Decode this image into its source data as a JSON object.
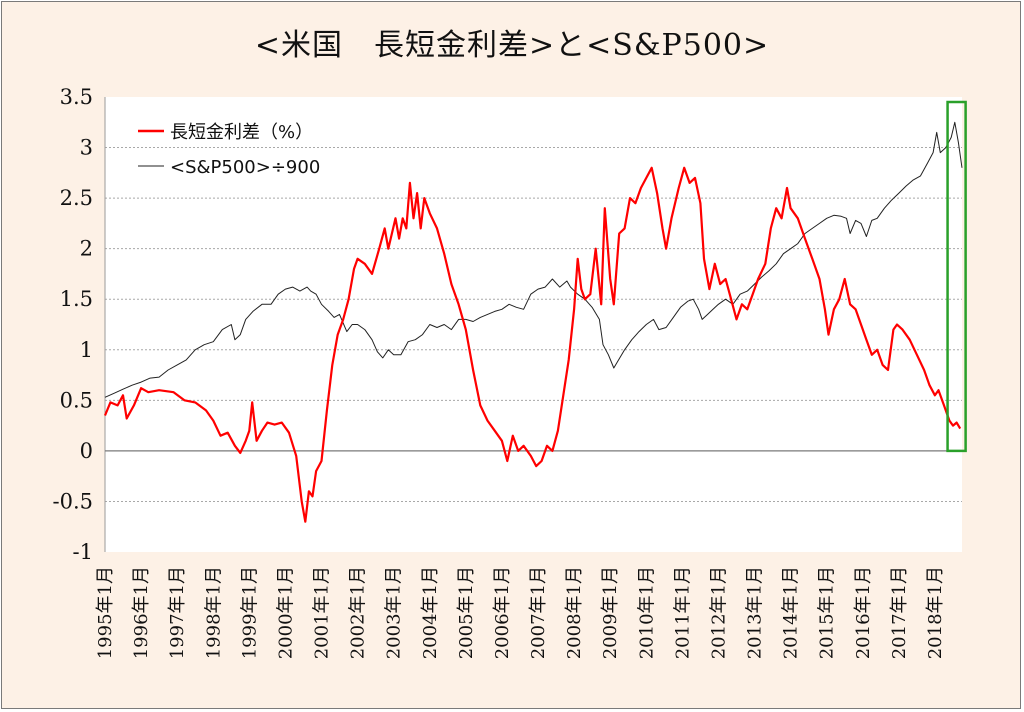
{
  "chart_data": {
    "type": "line",
    "title": "<米国　長短金利差>と<S&P500>",
    "xlabel": "",
    "ylabel": "",
    "ylim": [
      -1,
      3.5
    ],
    "yticks": [
      -1,
      -0.5,
      0,
      0.5,
      1,
      1.5,
      2,
      2.5,
      3,
      3.5
    ],
    "ytick_labels": [
      "-1",
      "-0.5",
      "0",
      "0.5",
      "1",
      "1.5",
      "2",
      "2.5",
      "3",
      "3.5"
    ],
    "xlim": [
      1995.0,
      2018.75
    ],
    "xtick_labels": [
      "1995年1月",
      "1996年1月",
      "1997年1月",
      "1998年1月",
      "1999年1月",
      "2000年1月",
      "2001年1月",
      "2002年1月",
      "2003年1月",
      "2004年1月",
      "2005年1月",
      "2006年1月",
      "2007年1月",
      "2008年1月",
      "2009年1月",
      "2010年1月",
      "2011年1月",
      "2012年1月",
      "2013年1月",
      "2014年1月",
      "2015年1月",
      "2016年1月",
      "2017年1月",
      "2018年1月"
    ],
    "grid": "horizontal dashed",
    "legend_position": "top-left",
    "series": [
      {
        "name": "長短金利差（%）",
        "color": "#ff0000",
        "points": [
          [
            1995.0,
            0.35
          ],
          [
            1995.15,
            0.48
          ],
          [
            1995.35,
            0.45
          ],
          [
            1995.5,
            0.55
          ],
          [
            1995.6,
            0.32
          ],
          [
            1995.8,
            0.45
          ],
          [
            1996.0,
            0.62
          ],
          [
            1996.2,
            0.58
          ],
          [
            1996.5,
            0.6
          ],
          [
            1996.9,
            0.58
          ],
          [
            1997.2,
            0.5
          ],
          [
            1997.5,
            0.48
          ],
          [
            1997.8,
            0.4
          ],
          [
            1998.0,
            0.3
          ],
          [
            1998.2,
            0.15
          ],
          [
            1998.4,
            0.18
          ],
          [
            1998.6,
            0.05
          ],
          [
            1998.75,
            -0.02
          ],
          [
            1998.9,
            0.1
          ],
          [
            1999.0,
            0.2
          ],
          [
            1999.08,
            0.48
          ],
          [
            1999.2,
            0.1
          ],
          [
            1999.35,
            0.2
          ],
          [
            1999.5,
            0.28
          ],
          [
            1999.7,
            0.26
          ],
          [
            1999.9,
            0.28
          ],
          [
            2000.1,
            0.18
          ],
          [
            2000.3,
            -0.05
          ],
          [
            2000.45,
            -0.5
          ],
          [
            2000.55,
            -0.7
          ],
          [
            2000.65,
            -0.4
          ],
          [
            2000.75,
            -0.45
          ],
          [
            2000.85,
            -0.2
          ],
          [
            2001.0,
            -0.1
          ],
          [
            2001.15,
            0.4
          ],
          [
            2001.3,
            0.85
          ],
          [
            2001.45,
            1.15
          ],
          [
            2001.6,
            1.3
          ],
          [
            2001.75,
            1.5
          ],
          [
            2001.9,
            1.8
          ],
          [
            2002.0,
            1.9
          ],
          [
            2002.2,
            1.85
          ],
          [
            2002.4,
            1.75
          ],
          [
            2002.6,
            2.0
          ],
          [
            2002.75,
            2.2
          ],
          [
            2002.85,
            2.0
          ],
          [
            2002.95,
            2.15
          ],
          [
            2003.05,
            2.3
          ],
          [
            2003.15,
            2.1
          ],
          [
            2003.25,
            2.3
          ],
          [
            2003.35,
            2.2
          ],
          [
            2003.45,
            2.65
          ],
          [
            2003.55,
            2.3
          ],
          [
            2003.65,
            2.55
          ],
          [
            2003.75,
            2.2
          ],
          [
            2003.85,
            2.5
          ],
          [
            2004.0,
            2.35
          ],
          [
            2004.2,
            2.2
          ],
          [
            2004.4,
            1.95
          ],
          [
            2004.6,
            1.65
          ],
          [
            2004.8,
            1.45
          ],
          [
            2005.0,
            1.2
          ],
          [
            2005.2,
            0.8
          ],
          [
            2005.4,
            0.45
          ],
          [
            2005.6,
            0.3
          ],
          [
            2005.8,
            0.2
          ],
          [
            2006.0,
            0.1
          ],
          [
            2006.15,
            -0.1
          ],
          [
            2006.3,
            0.15
          ],
          [
            2006.45,
            0.0
          ],
          [
            2006.6,
            0.05
          ],
          [
            2006.8,
            -0.05
          ],
          [
            2006.95,
            -0.15
          ],
          [
            2007.1,
            -0.1
          ],
          [
            2007.25,
            0.05
          ],
          [
            2007.4,
            0.0
          ],
          [
            2007.55,
            0.2
          ],
          [
            2007.7,
            0.55
          ],
          [
            2007.85,
            0.9
          ],
          [
            2008.0,
            1.4
          ],
          [
            2008.1,
            1.9
          ],
          [
            2008.2,
            1.6
          ],
          [
            2008.3,
            1.5
          ],
          [
            2008.45,
            1.55
          ],
          [
            2008.6,
            2.0
          ],
          [
            2008.75,
            1.45
          ],
          [
            2008.85,
            2.4
          ],
          [
            2009.0,
            1.7
          ],
          [
            2009.1,
            1.45
          ],
          [
            2009.25,
            2.15
          ],
          [
            2009.4,
            2.2
          ],
          [
            2009.55,
            2.5
          ],
          [
            2009.7,
            2.45
          ],
          [
            2009.85,
            2.6
          ],
          [
            2010.0,
            2.7
          ],
          [
            2010.15,
            2.8
          ],
          [
            2010.3,
            2.55
          ],
          [
            2010.45,
            2.2
          ],
          [
            2010.55,
            2.0
          ],
          [
            2010.7,
            2.3
          ],
          [
            2010.9,
            2.6
          ],
          [
            2011.05,
            2.8
          ],
          [
            2011.2,
            2.65
          ],
          [
            2011.35,
            2.7
          ],
          [
            2011.5,
            2.45
          ],
          [
            2011.6,
            1.9
          ],
          [
            2011.75,
            1.6
          ],
          [
            2011.9,
            1.85
          ],
          [
            2012.05,
            1.65
          ],
          [
            2012.2,
            1.7
          ],
          [
            2012.35,
            1.5
          ],
          [
            2012.5,
            1.3
          ],
          [
            2012.65,
            1.45
          ],
          [
            2012.8,
            1.4
          ],
          [
            2012.95,
            1.55
          ],
          [
            2013.1,
            1.7
          ],
          [
            2013.3,
            1.85
          ],
          [
            2013.45,
            2.2
          ],
          [
            2013.6,
            2.4
          ],
          [
            2013.75,
            2.3
          ],
          [
            2013.9,
            2.6
          ],
          [
            2014.0,
            2.4
          ],
          [
            2014.2,
            2.3
          ],
          [
            2014.4,
            2.1
          ],
          [
            2014.6,
            1.9
          ],
          [
            2014.8,
            1.7
          ],
          [
            2014.95,
            1.4
          ],
          [
            2015.05,
            1.15
          ],
          [
            2015.2,
            1.4
          ],
          [
            2015.35,
            1.5
          ],
          [
            2015.5,
            1.7
          ],
          [
            2015.65,
            1.45
          ],
          [
            2015.8,
            1.4
          ],
          [
            2015.95,
            1.25
          ],
          [
            2016.1,
            1.1
          ],
          [
            2016.25,
            0.95
          ],
          [
            2016.4,
            1.0
          ],
          [
            2016.55,
            0.85
          ],
          [
            2016.7,
            0.8
          ],
          [
            2016.85,
            1.2
          ],
          [
            2016.95,
            1.25
          ],
          [
            2017.1,
            1.2
          ],
          [
            2017.3,
            1.1
          ],
          [
            2017.5,
            0.95
          ],
          [
            2017.7,
            0.8
          ],
          [
            2017.85,
            0.65
          ],
          [
            2018.0,
            0.55
          ],
          [
            2018.1,
            0.6
          ],
          [
            2018.25,
            0.45
          ],
          [
            2018.4,
            0.3
          ],
          [
            2018.5,
            0.25
          ],
          [
            2018.6,
            0.28
          ],
          [
            2018.7,
            0.22
          ]
        ]
      },
      {
        "name": "<S&P500>÷900",
        "color": "#222222",
        "points": [
          [
            1995.0,
            0.53
          ],
          [
            1995.25,
            0.57
          ],
          [
            1995.5,
            0.61
          ],
          [
            1995.75,
            0.65
          ],
          [
            1996.0,
            0.68
          ],
          [
            1996.25,
            0.72
          ],
          [
            1996.5,
            0.73
          ],
          [
            1996.75,
            0.8
          ],
          [
            1997.0,
            0.85
          ],
          [
            1997.25,
            0.9
          ],
          [
            1997.5,
            1.0
          ],
          [
            1997.75,
            1.05
          ],
          [
            1998.0,
            1.08
          ],
          [
            1998.25,
            1.2
          ],
          [
            1998.5,
            1.25
          ],
          [
            1998.6,
            1.1
          ],
          [
            1998.75,
            1.15
          ],
          [
            1998.9,
            1.3
          ],
          [
            1999.1,
            1.38
          ],
          [
            1999.35,
            1.45
          ],
          [
            1999.6,
            1.45
          ],
          [
            1999.8,
            1.55
          ],
          [
            2000.0,
            1.6
          ],
          [
            2000.2,
            1.62
          ],
          [
            2000.4,
            1.58
          ],
          [
            2000.6,
            1.62
          ],
          [
            2000.7,
            1.58
          ],
          [
            2000.85,
            1.55
          ],
          [
            2001.0,
            1.45
          ],
          [
            2001.2,
            1.38
          ],
          [
            2001.35,
            1.32
          ],
          [
            2001.5,
            1.35
          ],
          [
            2001.7,
            1.18
          ],
          [
            2001.85,
            1.25
          ],
          [
            2002.0,
            1.25
          ],
          [
            2002.2,
            1.2
          ],
          [
            2002.4,
            1.1
          ],
          [
            2002.55,
            0.98
          ],
          [
            2002.7,
            0.92
          ],
          [
            2002.85,
            1.0
          ],
          [
            2003.0,
            0.95
          ],
          [
            2003.2,
            0.95
          ],
          [
            2003.4,
            1.08
          ],
          [
            2003.6,
            1.1
          ],
          [
            2003.8,
            1.15
          ],
          [
            2004.0,
            1.25
          ],
          [
            2004.2,
            1.22
          ],
          [
            2004.4,
            1.25
          ],
          [
            2004.6,
            1.2
          ],
          [
            2004.8,
            1.3
          ],
          [
            2005.0,
            1.3
          ],
          [
            2005.2,
            1.28
          ],
          [
            2005.4,
            1.32
          ],
          [
            2005.6,
            1.35
          ],
          [
            2005.8,
            1.38
          ],
          [
            2006.0,
            1.4
          ],
          [
            2006.2,
            1.45
          ],
          [
            2006.4,
            1.42
          ],
          [
            2006.6,
            1.4
          ],
          [
            2006.8,
            1.55
          ],
          [
            2007.0,
            1.6
          ],
          [
            2007.2,
            1.62
          ],
          [
            2007.4,
            1.7
          ],
          [
            2007.6,
            1.62
          ],
          [
            2007.8,
            1.68
          ],
          [
            2007.9,
            1.62
          ],
          [
            2008.1,
            1.55
          ],
          [
            2008.3,
            1.5
          ],
          [
            2008.5,
            1.42
          ],
          [
            2008.7,
            1.3
          ],
          [
            2008.8,
            1.05
          ],
          [
            2008.95,
            0.95
          ],
          [
            2009.1,
            0.82
          ],
          [
            2009.2,
            0.88
          ],
          [
            2009.4,
            1.0
          ],
          [
            2009.6,
            1.1
          ],
          [
            2009.8,
            1.18
          ],
          [
            2010.0,
            1.25
          ],
          [
            2010.2,
            1.3
          ],
          [
            2010.35,
            1.2
          ],
          [
            2010.55,
            1.22
          ],
          [
            2010.75,
            1.32
          ],
          [
            2010.95,
            1.42
          ],
          [
            2011.15,
            1.48
          ],
          [
            2011.3,
            1.5
          ],
          [
            2011.45,
            1.4
          ],
          [
            2011.55,
            1.3
          ],
          [
            2011.7,
            1.35
          ],
          [
            2011.85,
            1.4
          ],
          [
            2012.0,
            1.45
          ],
          [
            2012.2,
            1.5
          ],
          [
            2012.4,
            1.45
          ],
          [
            2012.6,
            1.55
          ],
          [
            2012.8,
            1.58
          ],
          [
            2013.0,
            1.65
          ],
          [
            2013.2,
            1.72
          ],
          [
            2013.4,
            1.78
          ],
          [
            2013.6,
            1.85
          ],
          [
            2013.8,
            1.95
          ],
          [
            2014.0,
            2.0
          ],
          [
            2014.2,
            2.05
          ],
          [
            2014.4,
            2.15
          ],
          [
            2014.6,
            2.2
          ],
          [
            2014.8,
            2.25
          ],
          [
            2015.0,
            2.3
          ],
          [
            2015.2,
            2.33
          ],
          [
            2015.4,
            2.32
          ],
          [
            2015.55,
            2.3
          ],
          [
            2015.65,
            2.15
          ],
          [
            2015.8,
            2.28
          ],
          [
            2015.95,
            2.25
          ],
          [
            2016.1,
            2.12
          ],
          [
            2016.25,
            2.28
          ],
          [
            2016.4,
            2.3
          ],
          [
            2016.6,
            2.4
          ],
          [
            2016.8,
            2.48
          ],
          [
            2017.0,
            2.55
          ],
          [
            2017.2,
            2.62
          ],
          [
            2017.4,
            2.68
          ],
          [
            2017.6,
            2.72
          ],
          [
            2017.8,
            2.85
          ],
          [
            2017.95,
            2.95
          ],
          [
            2018.05,
            3.15
          ],
          [
            2018.15,
            2.95
          ],
          [
            2018.3,
            3.0
          ],
          [
            2018.45,
            3.1
          ],
          [
            2018.55,
            3.25
          ],
          [
            2018.65,
            3.05
          ],
          [
            2018.75,
            2.8
          ]
        ]
      }
    ],
    "highlight_box": {
      "color": "#2aa02a",
      "x_from": 2018.35,
      "x_to": 2018.85,
      "y_from": 0,
      "y_to": 3.5
    }
  }
}
